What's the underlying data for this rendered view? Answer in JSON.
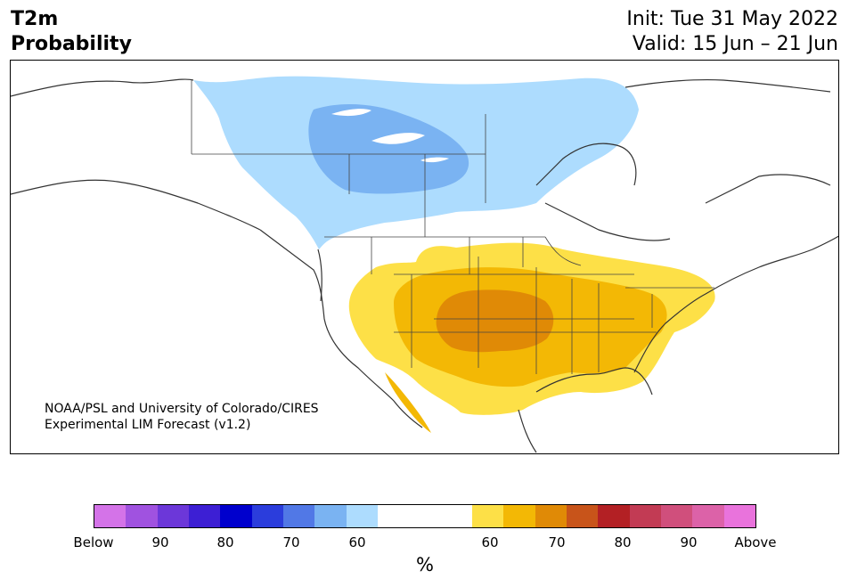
{
  "header": {
    "title_line1": "T2m",
    "title_line2": "Probability",
    "init": "Init: Tue 31 May 2022",
    "valid": "Valid: 15 Jun – 21 Jun"
  },
  "credit": {
    "line1": "NOAA/PSL and University of Colorado/CIRES",
    "line2": "Experimental LIM Forecast (v1.2)"
  },
  "colorbar": {
    "unit": "%",
    "colors": [
      "#d473e8",
      "#a052e0",
      "#6c37d9",
      "#3d1fd4",
      "#0000cd",
      "#2b3ddc",
      "#5178e6",
      "#7ab3f2",
      "#addcfe",
      "#ffffff",
      "#fde047",
      "#f3b805",
      "#e08a06",
      "#c8541a",
      "#b32024",
      "#c23b54",
      "#d04f7c",
      "#dc62a8",
      "#e973dc"
    ],
    "tick_labels": [
      "Below",
      "90",
      "80",
      "70",
      "60",
      "60",
      "70",
      "80",
      "90",
      "Above"
    ]
  },
  "legend_colors": {
    "below_light": "#addcfe",
    "below_mid": "#7ab3f2",
    "above_light": "#fde047",
    "above_mid": "#f3b805",
    "above_dark": "#e08a06"
  }
}
